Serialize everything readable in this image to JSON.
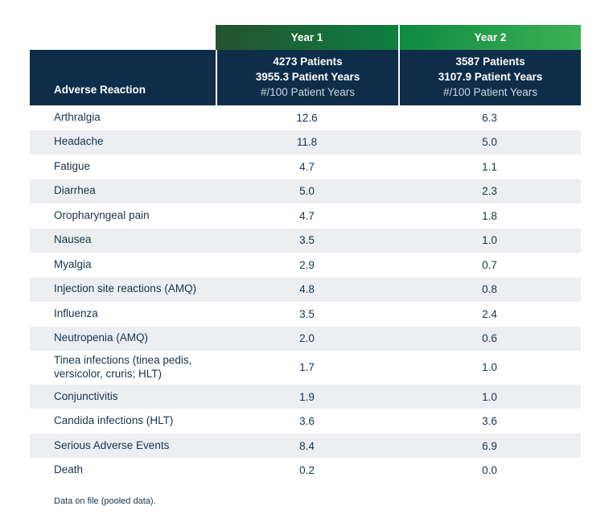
{
  "table": {
    "reaction_header": "Adverse Reaction",
    "year_columns": [
      {
        "tab_label": "Year 1",
        "patients": "4273 Patients",
        "patient_years": "3955.3 Patient Years",
        "rate_label": "#/100 Patient Years"
      },
      {
        "tab_label": "Year 2",
        "patients": "3587 Patients",
        "patient_years": "3107.9 Patient Years",
        "rate_label": "#/100 Patient Years"
      }
    ],
    "rows": [
      {
        "reaction": "Arthralgia",
        "year1": "12.6",
        "year2": "6.3"
      },
      {
        "reaction": "Headache",
        "year1": "11.8",
        "year2": "5.0"
      },
      {
        "reaction": "Fatigue",
        "year1": "4.7",
        "year2": "1.1"
      },
      {
        "reaction": "Diarrhea",
        "year1": "5.0",
        "year2": "2.3"
      },
      {
        "reaction": "Oropharyngeal pain",
        "year1": "4.7",
        "year2": "1.8"
      },
      {
        "reaction": "Nausea",
        "year1": "3.5",
        "year2": "1.0"
      },
      {
        "reaction": "Myalgia",
        "year1": "2.9",
        "year2": "0.7"
      },
      {
        "reaction": "Injection site reactions (AMQ)",
        "year1": "4.8",
        "year2": "0.8"
      },
      {
        "reaction": "Influenza",
        "year1": "3.5",
        "year2": "2.4"
      },
      {
        "reaction": "Neutropenia (AMQ)",
        "year1": "2.0",
        "year2": "0.6"
      },
      {
        "reaction": "Tinea infections (tinea pedis, versicolor, cruris; HLT)",
        "year1": "1.7",
        "year2": "1.0"
      },
      {
        "reaction": "Conjunctivitis",
        "year1": "1.9",
        "year2": "1.0"
      },
      {
        "reaction": "Candida infections (HLT)",
        "year1": "3.6",
        "year2": "3.6"
      },
      {
        "reaction": "Serious Adverse Events",
        "year1": "8.4",
        "year2": "6.9"
      },
      {
        "reaction": "Death",
        "year1": "0.2",
        "year2": "0.0"
      }
    ],
    "footnote": "Data on file (pooled data)."
  },
  "colors": {
    "header_navy": "#0e2d4a",
    "row_stripe": "#eceef2",
    "body_text": "#17344e",
    "year1_gradient_start": "#24522f",
    "year1_gradient_end": "#0f8040",
    "year2_gradient_start": "#0f8a43",
    "year2_gradient_end": "#3cb254",
    "divider_white": "#ffffff"
  },
  "chart_data": {
    "type": "table",
    "title": "",
    "columns": [
      "Adverse Reaction",
      "Year 1 — 4273 Patients, 3955.3 Patient Years, #/100 Patient Years",
      "Year 2 — 3587 Patients, 3107.9 Patient Years, #/100 Patient Years"
    ],
    "rows": [
      [
        "Arthralgia",
        12.6,
        6.3
      ],
      [
        "Headache",
        11.8,
        5.0
      ],
      [
        "Fatigue",
        4.7,
        1.1
      ],
      [
        "Diarrhea",
        5.0,
        2.3
      ],
      [
        "Oropharyngeal pain",
        4.7,
        1.8
      ],
      [
        "Nausea",
        3.5,
        1.0
      ],
      [
        "Myalgia",
        2.9,
        0.7
      ],
      [
        "Injection site reactions (AMQ)",
        4.8,
        0.8
      ],
      [
        "Influenza",
        3.5,
        2.4
      ],
      [
        "Neutropenia (AMQ)",
        2.0,
        0.6
      ],
      [
        "Tinea infections (tinea pedis, versicolor, cruris; HLT)",
        1.7,
        1.0
      ],
      [
        "Conjunctivitis",
        1.9,
        1.0
      ],
      [
        "Candida infections (HLT)",
        3.6,
        3.6
      ],
      [
        "Serious Adverse Events",
        8.4,
        6.9
      ],
      [
        "Death",
        0.2,
        0.0
      ]
    ],
    "footnote": "Data on file (pooled data)."
  }
}
